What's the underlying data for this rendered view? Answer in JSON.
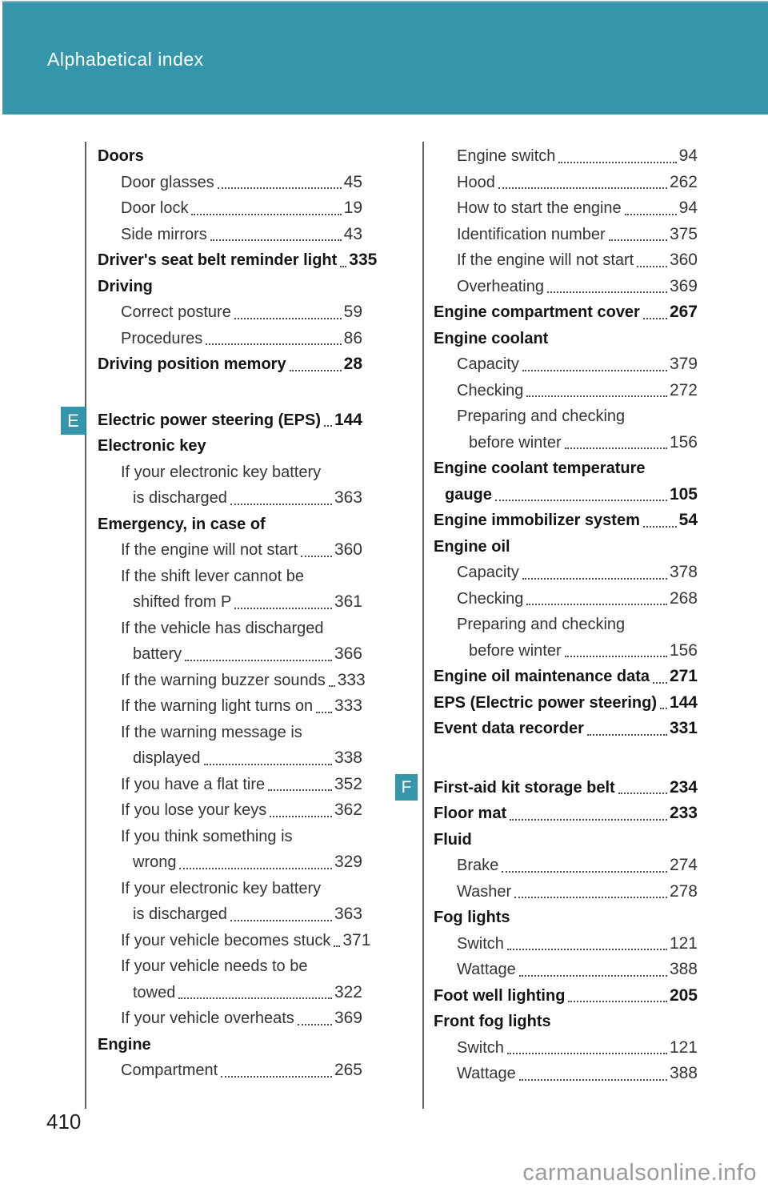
{
  "header": {
    "title": "Alphabetical index"
  },
  "footer": {
    "page_number": "410",
    "watermark": "carmanualsonline.info"
  },
  "markers": {
    "e": "E",
    "f": "F"
  },
  "accent_color": "#3596AB",
  "columns": {
    "left": [
      {
        "t": "h",
        "text": "Doors"
      },
      {
        "t": "e",
        "text": "Door glasses",
        "page": "45"
      },
      {
        "t": "e",
        "text": "Door lock",
        "page": "19"
      },
      {
        "t": "e",
        "text": "Side mirrors",
        "page": "43"
      },
      {
        "t": "hp",
        "text": "Driver's seat belt reminder light",
        "page": "335"
      },
      {
        "t": "h",
        "text": "Driving"
      },
      {
        "t": "e",
        "text": "Correct posture",
        "page": "59"
      },
      {
        "t": "e",
        "text": "Procedures",
        "page": "86"
      },
      {
        "t": "hp",
        "text": "Driving position memory",
        "page": "28"
      },
      {
        "t": "gap",
        "h": 37
      },
      {
        "t": "hp",
        "text": "Electric power steering (EPS)",
        "page": "144"
      },
      {
        "t": "h",
        "text": "Electronic key"
      },
      {
        "t": "ew",
        "text": "If your electronic key battery"
      },
      {
        "t": "ec",
        "text": "is discharged",
        "page": "363"
      },
      {
        "t": "h",
        "text": "Emergency, in case of"
      },
      {
        "t": "e",
        "text": "If the engine will not start",
        "page": "360"
      },
      {
        "t": "ew",
        "text": "If the shift lever cannot be"
      },
      {
        "t": "ec",
        "text": "shifted from P",
        "page": "361"
      },
      {
        "t": "ew",
        "text": "If the vehicle has discharged"
      },
      {
        "t": "ec",
        "text": "battery",
        "page": "366"
      },
      {
        "t": "e",
        "text": "If the warning buzzer sounds",
        "page": "333"
      },
      {
        "t": "e",
        "text": "If the warning light turns on",
        "page": "333"
      },
      {
        "t": "ew",
        "text": "If the warning message is"
      },
      {
        "t": "ec",
        "text": "displayed",
        "page": "338"
      },
      {
        "t": "e",
        "text": "If you have a flat tire",
        "page": "352"
      },
      {
        "t": "e",
        "text": "If you lose your keys",
        "page": "362"
      },
      {
        "t": "ew",
        "text": "If you think something is"
      },
      {
        "t": "ec",
        "text": "wrong",
        "page": "329"
      },
      {
        "t": "ew",
        "text": "If your electronic key battery"
      },
      {
        "t": "ec",
        "text": "is discharged",
        "page": "363"
      },
      {
        "t": "e",
        "text": "If your vehicle becomes stuck",
        "page": "371"
      },
      {
        "t": "ew",
        "text": "If your vehicle needs to be"
      },
      {
        "t": "ec",
        "text": "towed",
        "page": "322"
      },
      {
        "t": "e",
        "text": "If your vehicle overheats",
        "page": "369"
      },
      {
        "t": "h",
        "text": "Engine"
      },
      {
        "t": "e",
        "text": "Compartment",
        "page": "265"
      }
    ],
    "right": [
      {
        "t": "e",
        "text": "Engine switch",
        "page": "94"
      },
      {
        "t": "e",
        "text": "Hood",
        "page": "262"
      },
      {
        "t": "e",
        "text": "How to start the engine",
        "page": "94"
      },
      {
        "t": "e",
        "text": "Identification number",
        "page": "375"
      },
      {
        "t": "e",
        "text": "If the engine will not start",
        "page": "360"
      },
      {
        "t": "e",
        "text": "Overheating",
        "page": "369"
      },
      {
        "t": "hp",
        "text": "Engine compartment cover",
        "page": "267"
      },
      {
        "t": "h",
        "text": "Engine coolant"
      },
      {
        "t": "e",
        "text": "Capacity",
        "page": "379"
      },
      {
        "t": "e",
        "text": "Checking",
        "page": "272"
      },
      {
        "t": "ew",
        "text": "Preparing and checking"
      },
      {
        "t": "ec",
        "text": "before winter",
        "page": "156"
      },
      {
        "t": "h",
        "text": "Engine coolant temperature"
      },
      {
        "t": "hc",
        "text": "gauge",
        "page": "105"
      },
      {
        "t": "hp",
        "text": "Engine immobilizer system",
        "page": "54"
      },
      {
        "t": "h",
        "text": "Engine oil"
      },
      {
        "t": "e",
        "text": "Capacity",
        "page": "378"
      },
      {
        "t": "e",
        "text": "Checking",
        "page": "268"
      },
      {
        "t": "ew",
        "text": "Preparing and checking"
      },
      {
        "t": "ec",
        "text": "before winter",
        "page": "156"
      },
      {
        "t": "hp",
        "text": "Engine oil maintenance data",
        "page": "271"
      },
      {
        "t": "hp",
        "text": "EPS (Electric power steering)",
        "page": "144"
      },
      {
        "t": "hp",
        "text": "Event data recorder",
        "page": "331"
      },
      {
        "t": "gap",
        "h": 41
      },
      {
        "t": "hp",
        "text": "First-aid kit storage belt",
        "page": "234"
      },
      {
        "t": "hp",
        "text": "Floor mat",
        "page": "233"
      },
      {
        "t": "h",
        "text": "Fluid"
      },
      {
        "t": "e",
        "text": "Brake",
        "page": "274"
      },
      {
        "t": "e",
        "text": "Washer",
        "page": "278"
      },
      {
        "t": "h",
        "text": "Fog lights"
      },
      {
        "t": "e",
        "text": "Switch",
        "page": "121"
      },
      {
        "t": "e",
        "text": "Wattage",
        "page": "388"
      },
      {
        "t": "hp",
        "text": "Foot well lighting",
        "page": "205"
      },
      {
        "t": "h",
        "text": "Front fog lights"
      },
      {
        "t": "e",
        "text": "Switch",
        "page": "121"
      },
      {
        "t": "e",
        "text": "Wattage",
        "page": "388"
      }
    ]
  }
}
